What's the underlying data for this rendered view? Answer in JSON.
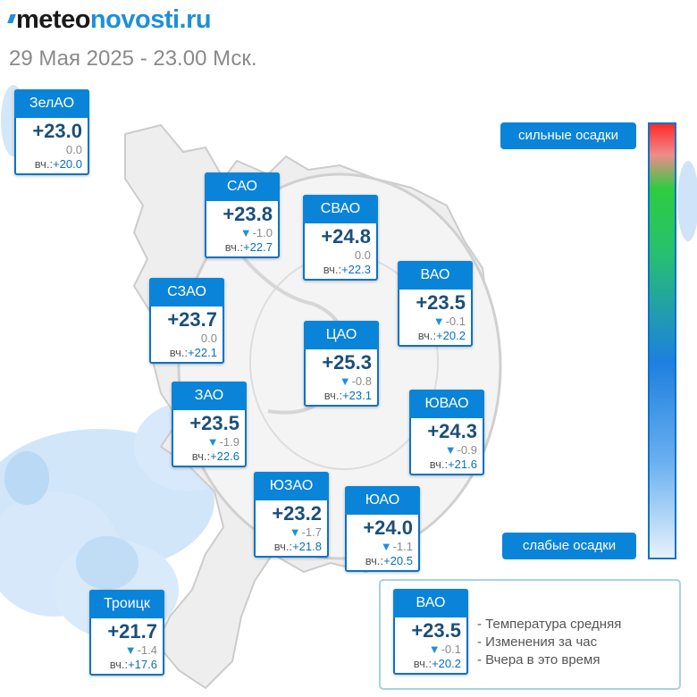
{
  "header": {
    "brand_part1": "meteo",
    "brand_part2": "novosti.ru",
    "subtitle": "29 Мая 2025 - 23.00 Мск."
  },
  "yesterday_prefix": "вч.:",
  "districts": [
    {
      "name": "ЗелАО",
      "temp": "+23.0",
      "change": "0.0",
      "trend": "none",
      "yesterday": "+20.0"
    },
    {
      "name": "САО",
      "temp": "+23.8",
      "change": "-1.0",
      "trend": "down",
      "yesterday": "+22.7"
    },
    {
      "name": "СВАО",
      "temp": "+24.8",
      "change": "0.0",
      "trend": "none",
      "yesterday": "+22.3"
    },
    {
      "name": "ВАО",
      "temp": "+23.5",
      "change": "-0.1",
      "trend": "down",
      "yesterday": "+20.2"
    },
    {
      "name": "СЗАО",
      "temp": "+23.7",
      "change": "0.0",
      "trend": "none",
      "yesterday": "+22.1"
    },
    {
      "name": "ЦАО",
      "temp": "+25.3",
      "change": "-0.8",
      "trend": "down",
      "yesterday": "+23.1"
    },
    {
      "name": "ЗАО",
      "temp": "+23.5",
      "change": "-1.9",
      "trend": "down",
      "yesterday": "+22.6"
    },
    {
      "name": "ЮВАО",
      "temp": "+24.3",
      "change": "-0.9",
      "trend": "down",
      "yesterday": "+21.6"
    },
    {
      "name": "ЮЗАО",
      "temp": "+23.2",
      "change": "-1.7",
      "trend": "down",
      "yesterday": "+21.8"
    },
    {
      "name": "ЮАО",
      "temp": "+24.0",
      "change": "-1.1",
      "trend": "down",
      "yesterday": "+20.5"
    },
    {
      "name": "Троицк",
      "temp": "+21.7",
      "change": "-1.4",
      "trend": "down",
      "yesterday": "+17.6"
    }
  ],
  "precip_legend": {
    "strong_label": "сильные осадки",
    "weak_label": "слабые осадки"
  },
  "key": {
    "example": {
      "name": "ВАО",
      "temp": "+23.5",
      "change": "-0.1",
      "trend": "down",
      "yesterday": "+20.2"
    },
    "line_temp": "- Температура средняя",
    "line_change": "- Изменения за час",
    "line_yesterday": "- Вчера в это время"
  },
  "colors": {
    "card_header": "#0a84d8",
    "card_border": "#0a73c6",
    "temp_text": "#1b4f7a",
    "trend_down": "#1e8fe0",
    "precip_light": "#cfe5f8"
  }
}
